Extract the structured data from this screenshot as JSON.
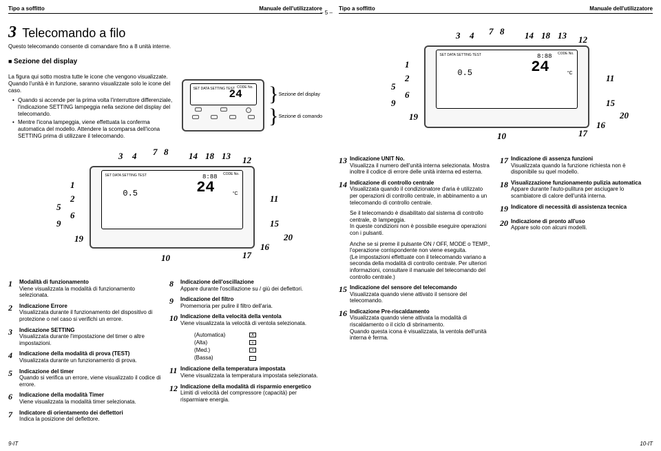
{
  "header": {
    "left": "Tipo a soffitto",
    "right": "Manuale dell'utilizzatore"
  },
  "page_center": "– 5 –",
  "page_left_foot": "9-IT",
  "page_right_foot": "10-IT",
  "chapter": {
    "num": "3",
    "title": "Telecomando a filo",
    "sub": "Questo telecomando consente di comandare fino a 8 unità interne."
  },
  "section": "Sezione del display",
  "intro": "La figura qui sotto mostra tutte le icone che vengono visualizzate. Quando l'unità è in funzione, saranno visualizzate solo le icone del caso.",
  "badge_setting": "SETTING",
  "bullets": [
    "Quando si accende per la prima volta l'interruttore differenziale, l'indicazione SETTING lampeggia nella sezione del display del telecomando.",
    "Mentre l'icona lampeggia, viene effettuata la conferma automatica del modello. Attendere la scomparsa dell'icona SETTING prima di utilizzare il telecomando."
  ],
  "side_labels": {
    "disp": "Sezione del display",
    "cmd": "Sezione di comando"
  },
  "remote": {
    "big_num": "24",
    "codeno": "CODE No.",
    "set_small": "SET DATA  SETTING  TEST",
    "c": "°C",
    "seg": "0.5",
    "seg2": "8:88"
  },
  "callouts_top": [
    "3",
    "4",
    "7",
    "8",
    "14",
    "18",
    "13",
    "12"
  ],
  "callouts_left": [
    "1",
    "2",
    "5",
    "6",
    "9",
    "19"
  ],
  "callouts_right": [
    "11",
    "15",
    "20",
    "16",
    "17",
    "10"
  ],
  "desc_left": [
    {
      "n": "1",
      "h": "Modalità di funzionamento",
      "b": "Viene visualizzata la modalità di funzionamento selezionata."
    },
    {
      "n": "2",
      "h": "Indicazione Errore",
      "b": "Visualizzata durante il funzionamento del dispositivo di protezione o nel caso si verifichi un errore."
    },
    {
      "n": "3",
      "h": "Indicazione SETTING",
      "b": "Visualizzata durante l'impostazione del timer o altre impostazioni."
    },
    {
      "n": "4",
      "h": "Indicazione della modalità di prova (TEST)",
      "b": "Visualizzata durante un funzionamento di prova."
    },
    {
      "n": "5",
      "h": "Indicazione del timer",
      "b": "Quando si verifica un errore, viene visualizzato il codice di errore."
    },
    {
      "n": "6",
      "h": "Indicazione della modalità Timer",
      "b": "Viene visualizzata la modalità timer selezionata."
    },
    {
      "n": "7",
      "h": "Indicatore di orientamento dei deflettori",
      "b": "Indica la posizione del deflettore."
    }
  ],
  "desc_mid": [
    {
      "n": "8",
      "h": "Indicazione dell'oscillazione",
      "b": "Appare durante l'oscillazione su / giù dei deflettori."
    },
    {
      "n": "9",
      "h": "Indicazione del filtro",
      "b": "Promemoria per pulire il filtro dell'aria."
    },
    {
      "n": "10",
      "h": "Indicazione della velocità della ventola",
      "b": "Viene visualizzata la velocità di ventola selezionata."
    },
    {
      "n": "11",
      "h": "Indicazione della temperatura impostata",
      "b": "Viene visualizzata la temperatura impostata selezionata."
    },
    {
      "n": "12",
      "h": "Indicazione della modalità di risparmio energetico",
      "b": "Limiti di velocità del compressore (capacità) per risparmiare energia."
    }
  ],
  "speeds": [
    {
      "label": "(Automatica)",
      "ico": "A"
    },
    {
      "label": "(Alta)",
      "ico": "≡"
    },
    {
      "label": "(Med.)",
      "ico": "="
    },
    {
      "label": "(Bassa)",
      "ico": "-"
    }
  ],
  "desc_r1": [
    {
      "n": "13",
      "h": "Indicazione UNIT No.",
      "b": "Visualizza il numero dell'unità interna selezionata. Mostra inoltre il codice di errore delle unità interna ed esterna."
    },
    {
      "n": "14",
      "h": "Indicazione di controllo centrale",
      "b": "Visualizzata quando il condizionatore d'aria è utilizzato per operazioni di controllo centrale, in abbinamento a un telecomando di controllo centrale."
    },
    {
      "n": "",
      "h": "",
      "b": "Se il telecomando è disabilitato dal sistema di controllo centrale, ⊘ lampeggia.\nIn queste condizioni non è possibile eseguire operazioni con i pulsanti."
    },
    {
      "n": "",
      "h": "",
      "b": "Anche se si preme il pulsante ON / OFF, MODE o TEMP., l'operazione corrispondente non viene eseguita.\n(Le impostazioni effettuate con il telecomando variano a seconda della modalità di controllo centrale. Per ulteriori informazioni, consultare il manuale del telecomando del controllo centrale.)"
    },
    {
      "n": "15",
      "h": "Indicazione del sensore del telecomando",
      "b": "Visualizzata quando viene attivato il sensore del telecomando."
    },
    {
      "n": "16",
      "h": "Indicazione Pre-riscaldamento",
      "b": "Visualizzata quando viene attivata la modalità di riscaldamento o il ciclo di sbrinamento.\nQuando questa icona è visualizzata, la ventola dell'unità interna è ferma."
    }
  ],
  "desc_r2": [
    {
      "n": "17",
      "h": "Indicazione di assenza funzioni",
      "b": "Visualizzata quando la funzione richiesta non è disponibile su quel modello."
    },
    {
      "n": "18",
      "h": "Visualizzazione funzionamento pulizia automatica",
      "b": "Appare durante l'auto-pulitura per asciugare lo scambiatore di calore dell'unità interna."
    },
    {
      "n": "19",
      "h": "Indicatore di necessità di assistenza tecnica",
      "b": ""
    },
    {
      "n": "20",
      "h": "Indicazione di pronto all'uso",
      "b": "Appare solo con alcuni modelli."
    }
  ]
}
